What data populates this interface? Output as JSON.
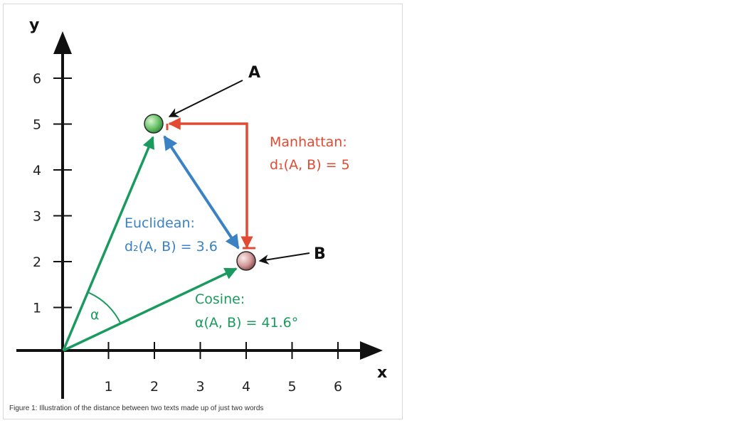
{
  "figure": {
    "caption": "Figure 1: Illustration of the distance between two texts made up of just two words",
    "axes": {
      "x_name": "x",
      "y_name": "y",
      "x_ticks": [
        "1",
        "2",
        "3",
        "4",
        "5",
        "6"
      ],
      "y_ticks": [
        "1",
        "2",
        "3",
        "4",
        "5",
        "6"
      ]
    },
    "points": {
      "a": {
        "label": "A",
        "x": 2,
        "y": 5,
        "color": "#4caf50"
      },
      "b": {
        "label": "B",
        "x": 4,
        "y": 2,
        "color": "#c98585"
      }
    },
    "manhattan": {
      "title": "Manhattan:",
      "formula": "d₁(A, B) = 5",
      "color": "#e24a33"
    },
    "euclidean": {
      "title": "Euclidean:",
      "formula": "d₂(A, B) = 3.6",
      "color": "#3b82c4"
    },
    "cosine": {
      "title": "Cosine:",
      "formula": "α(A, B) = 41.6°",
      "angle_symbol": "α",
      "color": "#1a9a5e"
    }
  }
}
